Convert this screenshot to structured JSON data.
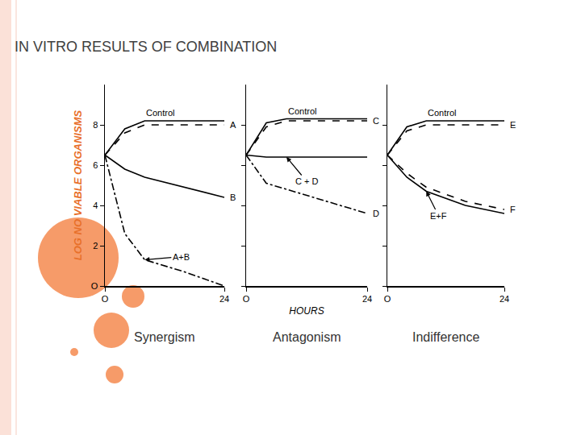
{
  "title": "IN VITRO RESULTS OF COMBINATION",
  "chart_data": [
    {
      "type": "line",
      "title": "Synergism",
      "y_label": "LOG NO VIABLE ORGANISMS",
      "x": [
        0,
        4,
        8,
        16,
        24
      ],
      "xlim": [
        0,
        24
      ],
      "xticks": [
        {
          "value": 0,
          "label": "O"
        },
        24
      ],
      "ylim": [
        0,
        10
      ],
      "yticks": [
        {
          "value": 0,
          "label": "O"
        },
        2,
        4,
        6,
        8
      ],
      "tick_labels": true,
      "grid": false,
      "series": [
        {
          "name": "Control",
          "color": "#000000",
          "line_style": "solid",
          "values": [
            6.5,
            7.8,
            8.2,
            8.2,
            8.2
          ]
        },
        {
          "name": "A",
          "color": "#000000",
          "line_style": "dashed",
          "values": [
            6.5,
            7.6,
            8.0,
            8.0,
            8.0
          ]
        },
        {
          "name": "B",
          "color": "#000000",
          "line_style": "solid",
          "values": [
            6.5,
            5.8,
            5.4,
            4.9,
            4.4
          ]
        },
        {
          "name": "A+B",
          "color": "#000000",
          "line_style": "dashdot",
          "values": [
            6.5,
            2.6,
            1.3,
            0.7,
            0.0
          ]
        }
      ]
    },
    {
      "type": "line",
      "title": "Antagonism",
      "x_label": "HOURS",
      "x": [
        0,
        4,
        8,
        16,
        24
      ],
      "xlim": [
        0,
        24
      ],
      "xticks": [
        {
          "value": 0,
          "label": "O"
        },
        24
      ],
      "ylim": [
        0,
        10
      ],
      "yticks": [
        0,
        2,
        4,
        6,
        8
      ],
      "tick_labels": "x",
      "grid": false,
      "series": [
        {
          "name": "Control",
          "color": "#000000",
          "line_style": "solid",
          "values": [
            6.5,
            8.1,
            8.3,
            8.3,
            8.3
          ]
        },
        {
          "name": "C",
          "color": "#000000",
          "line_style": "dashed",
          "values": [
            6.5,
            7.9,
            8.2,
            8.2,
            8.2
          ]
        },
        {
          "name": "D",
          "color": "#000000",
          "line_style": "dashdot",
          "values": [
            6.5,
            5.1,
            4.8,
            4.2,
            3.6
          ]
        },
        {
          "name": "C + D",
          "color": "#000000",
          "line_style": "solid",
          "values": [
            6.5,
            6.4,
            6.4,
            6.4,
            6.4
          ]
        }
      ]
    },
    {
      "type": "line",
      "title": "Indifference",
      "x": [
        0,
        4,
        8,
        16,
        24
      ],
      "xlim": [
        0,
        24
      ],
      "xticks": [
        {
          "value": 0,
          "label": "O"
        },
        24
      ],
      "ylim": [
        0,
        10
      ],
      "yticks": [
        0,
        2,
        4,
        6,
        8
      ],
      "tick_labels": "x",
      "grid": false,
      "series": [
        {
          "name": "Control",
          "color": "#000000",
          "line_style": "solid",
          "values": [
            6.5,
            7.9,
            8.2,
            8.2,
            8.2
          ]
        },
        {
          "name": "E",
          "color": "#000000",
          "line_style": "dashed",
          "values": [
            6.5,
            7.7,
            8.0,
            8.0,
            8.0
          ]
        },
        {
          "name": "F",
          "color": "#000000",
          "line_style": "dashed",
          "values": [
            6.5,
            5.6,
            4.9,
            4.2,
            3.8
          ]
        },
        {
          "name": "E+F",
          "color": "#000000",
          "line_style": "solid",
          "values": [
            6.5,
            5.4,
            4.7,
            4.0,
            3.6
          ]
        }
      ]
    }
  ]
}
